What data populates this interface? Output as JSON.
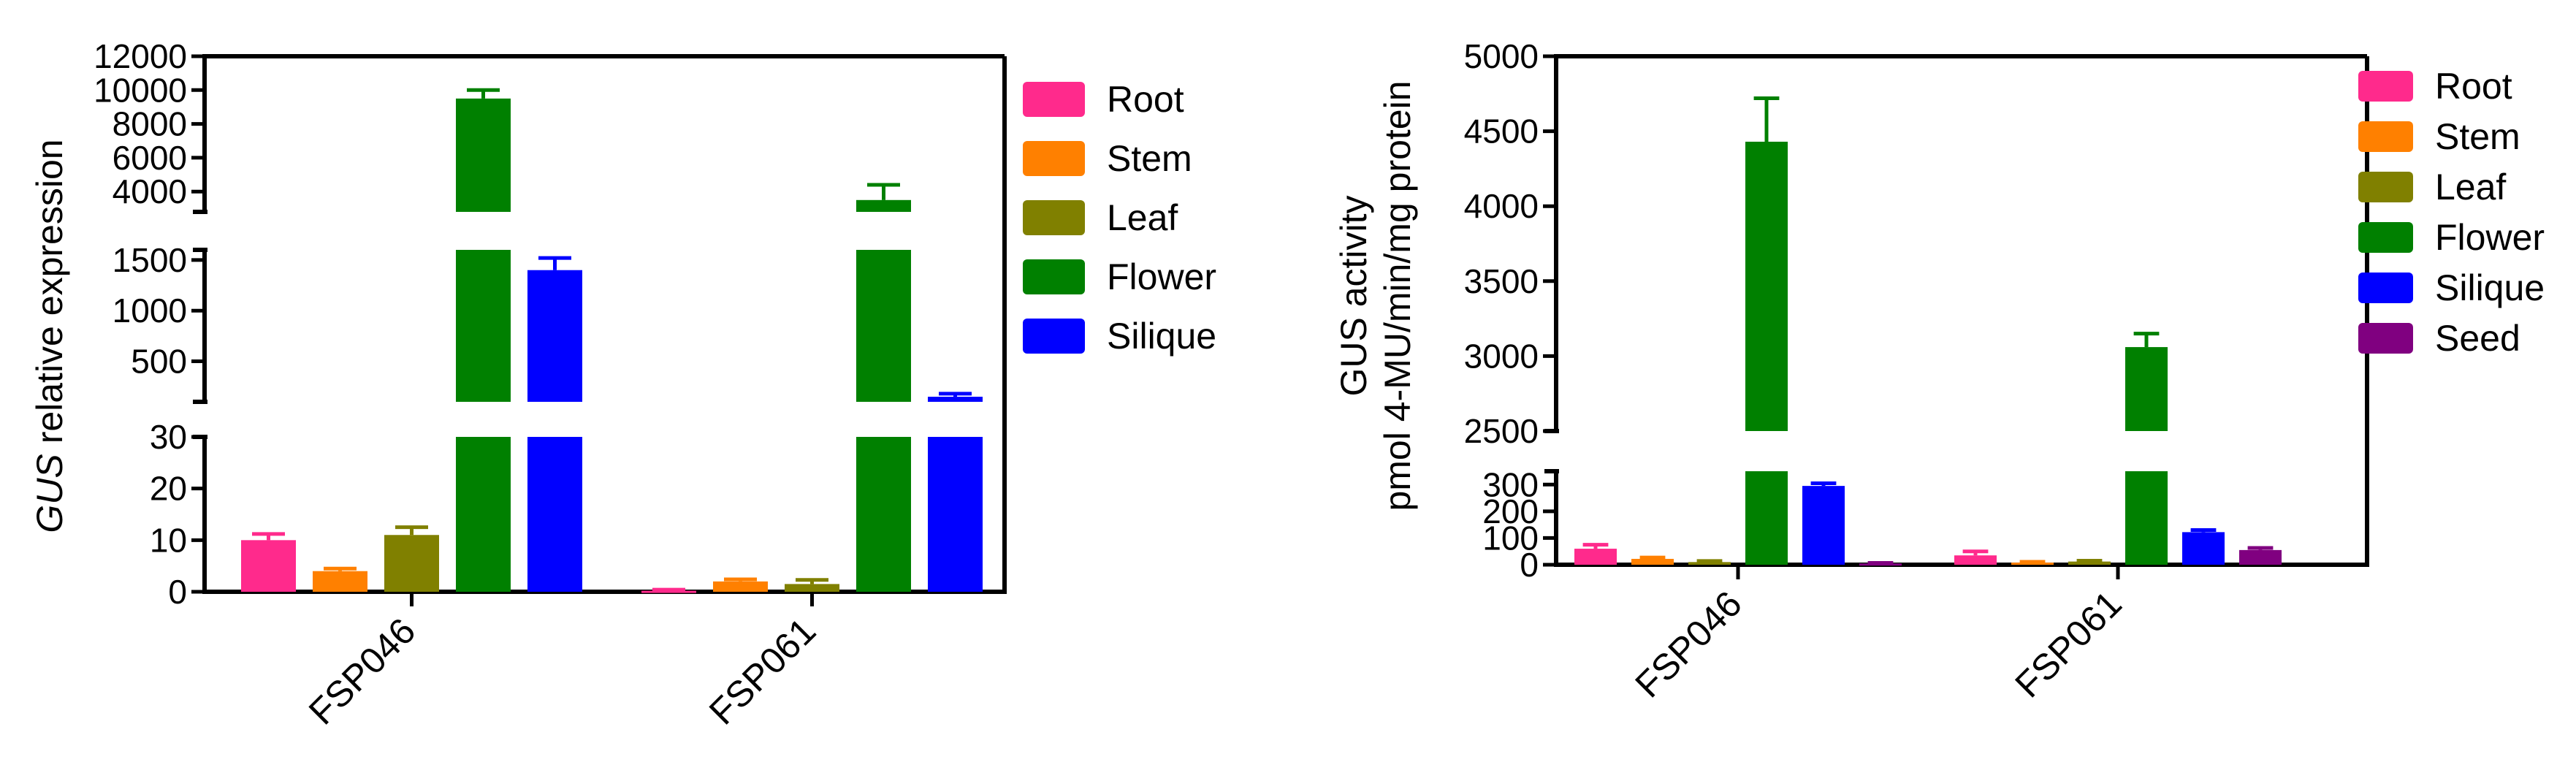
{
  "chart_data": [
    {
      "type": "bar",
      "ylabel_italic": "GUS",
      "ylabel_rest": " relative expression",
      "categories": [
        "FSP046",
        "FSP061"
      ],
      "y_axis_breaks": [
        {
          "ylim": [
            0,
            30
          ],
          "ticks": [
            "0",
            "10",
            "20",
            "30"
          ]
        },
        {
          "ylim": [
            100,
            1600
          ],
          "ticks": [
            "500",
            "1000",
            "1500"
          ]
        },
        {
          "ylim": [
            2800,
            12000
          ],
          "ticks": [
            "4000",
            "6000",
            "8000",
            "10000",
            "12000"
          ]
        }
      ],
      "series": [
        {
          "name": "Root",
          "color": "#ff2a8c",
          "values": [
            10,
            0.2
          ],
          "errors": [
            1.2,
            0.2
          ]
        },
        {
          "name": "Stem",
          "color": "#ff8000",
          "values": [
            4,
            2
          ],
          "errors": [
            0.5,
            0.4
          ]
        },
        {
          "name": "Leaf",
          "color": "#808000",
          "values": [
            11,
            1.5
          ],
          "errors": [
            1.5,
            0.8
          ]
        },
        {
          "name": "Flower",
          "color": "#008000",
          "values": [
            9500,
            3500
          ],
          "errors": [
            500,
            900
          ]
        },
        {
          "name": "Silique",
          "color": "#0000ff",
          "values": [
            1400,
            150
          ],
          "errors": [
            120,
            30
          ]
        }
      ],
      "legend_position": "right"
    },
    {
      "type": "bar",
      "ylabel_line1": "GUS activity",
      "ylabel_line2": "pmol 4-MU/min/mg protein",
      "categories": [
        "FSP046",
        "FSP061"
      ],
      "y_axis_breaks": [
        {
          "ylim": [
            0,
            350
          ],
          "ticks": [
            "0",
            "100",
            "200",
            "300"
          ]
        },
        {
          "ylim": [
            2500,
            5000
          ],
          "ticks": [
            "2500",
            "3000",
            "3500",
            "4000",
            "4500",
            "5000"
          ]
        }
      ],
      "series": [
        {
          "name": "Root",
          "color": "#ff2a8c",
          "values": [
            60,
            35
          ],
          "errors": [
            15,
            15
          ]
        },
        {
          "name": "Stem",
          "color": "#ff8000",
          "values": [
            22,
            8
          ],
          "errors": [
            5,
            3
          ]
        },
        {
          "name": "Leaf",
          "color": "#808000",
          "values": [
            10,
            12
          ],
          "errors": [
            4,
            3
          ]
        },
        {
          "name": "Flower",
          "color": "#008000",
          "values": [
            4430,
            3060
          ],
          "errors": [
            290,
            90
          ]
        },
        {
          "name": "Silique",
          "color": "#0000ff",
          "values": [
            295,
            122
          ],
          "errors": [
            10,
            8
          ]
        },
        {
          "name": "Seed",
          "color": "#800080",
          "values": [
            5,
            55
          ],
          "errors": [
            2,
            8
          ]
        }
      ],
      "legend_position": "right"
    }
  ]
}
